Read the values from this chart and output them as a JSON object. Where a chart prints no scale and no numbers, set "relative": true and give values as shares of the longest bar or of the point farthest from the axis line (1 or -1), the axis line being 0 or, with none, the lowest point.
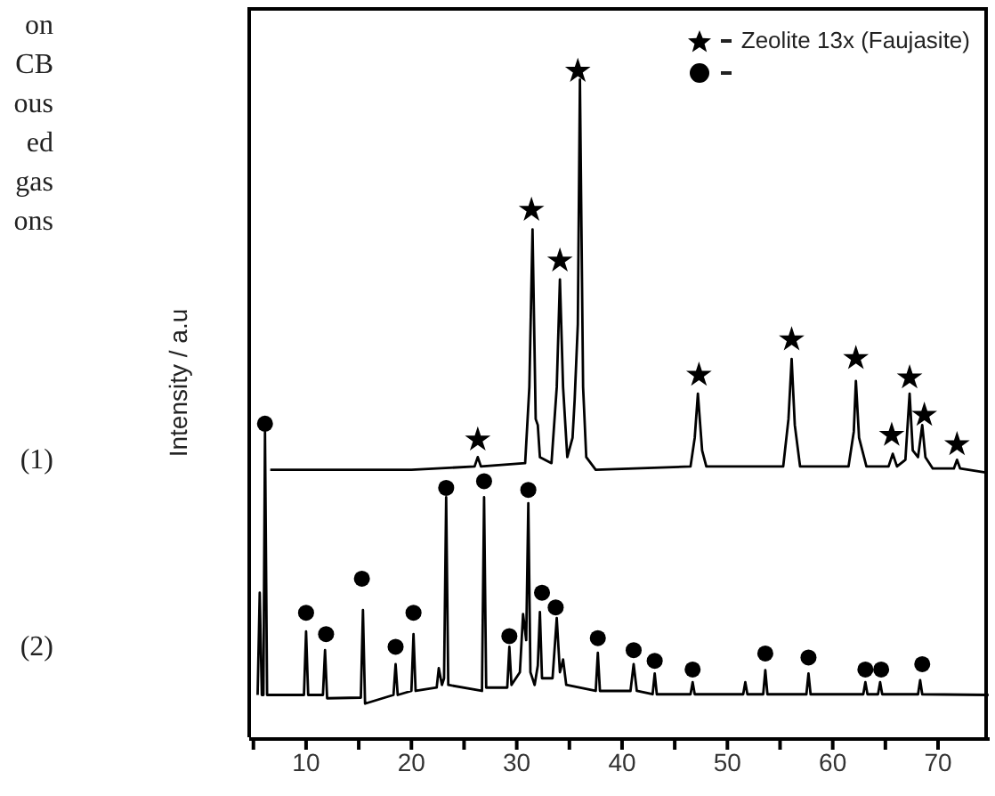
{
  "chart_data": {
    "type": "line",
    "relative": true,
    "ylabel": "Intensity / a.u",
    "legend": "top right",
    "grid": false,
    "xlim": [
      4.6,
      74.9
    ],
    "xticks": [
      {
        "value": 5,
        "label": null
      },
      10,
      {
        "value": 15,
        "label": null
      },
      20,
      {
        "value": 25,
        "label": null
      },
      30,
      {
        "value": 35,
        "label": null
      },
      40,
      {
        "value": 45,
        "label": null
      },
      50,
      {
        "value": 55,
        "label": null
      },
      60,
      {
        "value": 65,
        "label": null
      },
      70
    ],
    "series": [
      {
        "marker": "none",
        "color": "#000000",
        "x": [
          6.6,
          20,
          26.0,
          26.3,
          26.6,
          30.8,
          31.2,
          31.5,
          31.8,
          32.0,
          32.2,
          33.3,
          33.8,
          34.1,
          34.4,
          34.8,
          35.3,
          35.5,
          35.8,
          36.0,
          36.3,
          36.6,
          37.5,
          46.5,
          46.9,
          47.2,
          47.6,
          48,
          55.3,
          55.8,
          56.1,
          56.4,
          56.9,
          61.5,
          62.0,
          62.2,
          62.5,
          63.2,
          65.3,
          65.7,
          66.1,
          66.9,
          67.3,
          67.6,
          68.1,
          68.5,
          68.8,
          69.5,
          71.5,
          71.8,
          72.1,
          74.5
        ],
        "values": [
          0.403,
          0.403,
          0.408,
          0.422,
          0.408,
          0.413,
          0.527,
          0.763,
          0.479,
          0.47,
          0.422,
          0.413,
          0.527,
          0.688,
          0.527,
          0.422,
          0.451,
          0.508,
          0.621,
          0.987,
          0.527,
          0.422,
          0.403,
          0.408,
          0.451,
          0.517,
          0.432,
          0.408,
          0.408,
          0.479,
          0.569,
          0.47,
          0.408,
          0.408,
          0.46,
          0.536,
          0.451,
          0.408,
          0.408,
          0.427,
          0.408,
          0.418,
          0.517,
          0.432,
          0.422,
          0.47,
          0.422,
          0.405,
          0.405,
          0.418,
          0.405,
          0.399
        ]
      },
      {
        "marker": "none",
        "color": "#000000",
        "x": [
          5.4,
          5.6,
          5.8,
          5.95,
          6.1,
          6.3,
          9.8,
          10.0,
          10.2,
          11.6,
          11.8,
          12.0,
          15.2,
          15.4,
          15.6,
          18.3,
          18.5,
          18.7,
          20.0,
          20.2,
          20.4,
          22.4,
          22.6,
          22.9,
          23.1,
          23.3,
          23.5,
          26.7,
          26.9,
          27.1,
          29.1,
          29.3,
          29.5,
          30.3,
          30.6,
          30.9,
          31.1,
          31.3,
          31.7,
          32.0,
          32.2,
          32.4,
          33.4,
          33.8,
          34.1,
          34.4,
          34.7,
          37.5,
          37.7,
          37.9,
          40.8,
          41.1,
          41.4,
          42.9,
          43.1,
          43.3,
          46.5,
          46.7,
          46.9,
          51.5,
          51.7,
          51.9,
          53.4,
          53.6,
          53.8,
          57.5,
          57.7,
          57.9,
          62.9,
          63.1,
          63.3,
          64.3,
          64.5,
          64.7,
          68.1,
          68.3,
          68.5,
          74.8
        ],
        "values": [
          0.066,
          0.219,
          0.066,
          0.066,
          0.46,
          0.066,
          0.066,
          0.161,
          0.066,
          0.066,
          0.133,
          0.061,
          0.062,
          0.193,
          0.053,
          0.066,
          0.112,
          0.066,
          0.072,
          0.157,
          0.072,
          0.077,
          0.106,
          0.081,
          0.091,
          0.362,
          0.081,
          0.072,
          0.362,
          0.077,
          0.077,
          0.138,
          0.081,
          0.1,
          0.187,
          0.148,
          0.353,
          0.1,
          0.081,
          0.11,
          0.19,
          0.091,
          0.091,
          0.181,
          0.1,
          0.119,
          0.081,
          0.072,
          0.129,
          0.072,
          0.072,
          0.112,
          0.072,
          0.067,
          0.098,
          0.067,
          0.067,
          0.085,
          0.067,
          0.067,
          0.085,
          0.067,
          0.067,
          0.103,
          0.067,
          0.067,
          0.098,
          0.067,
          0.067,
          0.085,
          0.067,
          0.067,
          0.085,
          0.067,
          0.067,
          0.088,
          0.067,
          0.066
        ]
      },
      {
        "type": "scatter",
        "marker": "star",
        "name": "Zeolite 13x (Faujasite)",
        "color": "#000000",
        "x": [
          26.3,
          31.4,
          34.1,
          35.8,
          47.3,
          56.1,
          62.2,
          65.6,
          67.3,
          68.7,
          71.8
        ],
        "values": [
          0.448,
          0.792,
          0.716,
          1.0,
          0.545,
          0.598,
          0.57,
          0.455,
          0.541,
          0.485,
          0.441
        ]
      },
      {
        "type": "scatter",
        "marker": "circle",
        "color": "#000000",
        "x": [
          6.1,
          10.0,
          11.9,
          15.3,
          18.5,
          20.2,
          23.3,
          26.9,
          29.3,
          31.1,
          32.4,
          33.7,
          37.7,
          41.1,
          43.1,
          46.7,
          53.6,
          57.7,
          63.1,
          64.6,
          68.5
        ],
        "values": [
          0.472,
          0.189,
          0.157,
          0.24,
          0.138,
          0.189,
          0.376,
          0.386,
          0.154,
          0.373,
          0.219,
          0.197,
          0.151,
          0.133,
          0.117,
          0.104,
          0.128,
          0.122,
          0.104,
          0.104,
          0.112
        ]
      }
    ],
    "annotations": [
      "on",
      "CB",
      "ous",
      "ed",
      "gas",
      "ons",
      "(1)",
      "(2)"
    ]
  }
}
